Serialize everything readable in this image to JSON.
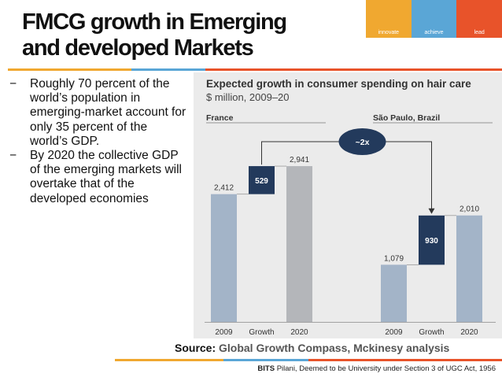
{
  "slide": {
    "title_line1": "FMCG growth in Emerging",
    "title_line2": "and developed Markets"
  },
  "logo": {
    "words": [
      "innovate",
      "achieve",
      "lead"
    ],
    "colors": [
      "#f0a830",
      "#5aa6d6",
      "#e8532a"
    ]
  },
  "bullets": [
    {
      "marker": "−",
      "text": "Roughly 70 percent of the world’s population in emerging-market account for only 35 percent of the world’s GDP."
    },
    {
      "marker": "−",
      "text": "By 2020 the collective GDP of the emerging markets  will overtake that of the developed economies"
    }
  ],
  "source": {
    "label": "Source:",
    "text": "Global Growth Compass, Mckinesy analysis"
  },
  "footer": {
    "bold": "BITS",
    "text": " Pilani, Deemed to be University under Section 3 of UGC Act, 1956"
  },
  "chart_data": {
    "type": "bar",
    "title": "Expected growth in consumer spending on hair care",
    "subtitle": "$ million, 2009–20",
    "annotation": "~2x",
    "categories": [
      "2009",
      "Growth",
      "2020"
    ],
    "panels": [
      {
        "name": "France",
        "values": [
          2412,
          529,
          2941
        ],
        "labels": [
          "2,412",
          "529",
          "2,941"
        ]
      },
      {
        "name": "São Paulo, Brazil",
        "values": [
          1079,
          930,
          2010
        ],
        "labels": [
          "1,079",
          "930",
          "2,010"
        ]
      }
    ],
    "colors": {
      "base": "#a3b4c8",
      "growth": "#233a5c",
      "end_france": "#b4b6ba",
      "end_brazil": "#a3b4c8"
    },
    "grid": false
  }
}
